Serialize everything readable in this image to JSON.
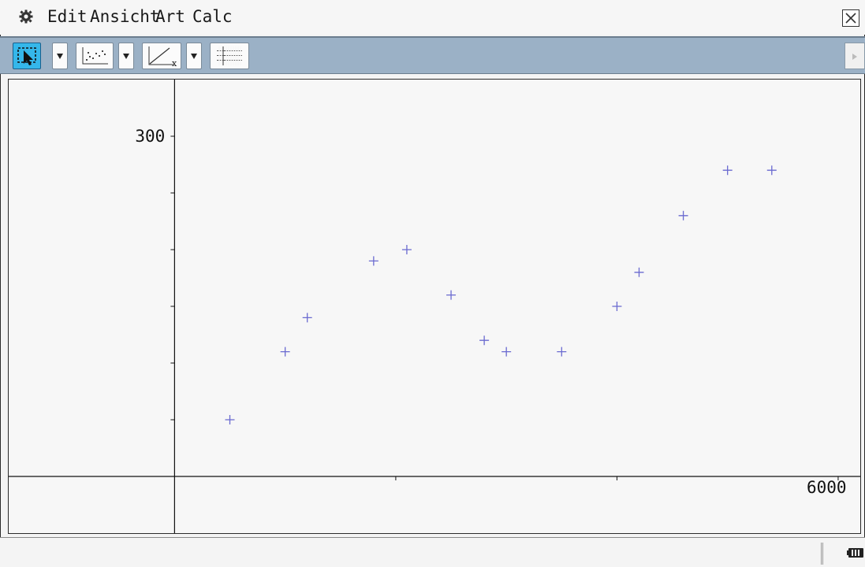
{
  "menu": {
    "items": [
      "Edit",
      "Ansicht",
      "Art",
      "Calc"
    ]
  },
  "toolbar": {
    "icons": [
      "select-pointer-icon",
      "scatter-plot-icon",
      "line-graph-icon",
      "grid-icon"
    ]
  },
  "graph": {
    "y_tick_label": "300",
    "x_tick_label": "6000"
  },
  "chart_data": {
    "type": "scatter",
    "marker": "+",
    "marker_color": "#6a6ad0",
    "xlim": [
      -1500,
      6200
    ],
    "ylim": [
      -50,
      350
    ],
    "x_ticks": [
      2000,
      4000,
      6000
    ],
    "y_ticks": [
      50,
      100,
      150,
      200,
      250,
      300
    ],
    "x_labels": {
      "6000": "6000"
    },
    "y_labels": {
      "300": "300"
    },
    "points": [
      {
        "x": 500,
        "y": 50
      },
      {
        "x": 1000,
        "y": 110
      },
      {
        "x": 1200,
        "y": 140
      },
      {
        "x": 1800,
        "y": 190
      },
      {
        "x": 2100,
        "y": 200
      },
      {
        "x": 2500,
        "y": 160
      },
      {
        "x": 2800,
        "y": 120
      },
      {
        "x": 3000,
        "y": 110
      },
      {
        "x": 3500,
        "y": 110
      },
      {
        "x": 4000,
        "y": 150
      },
      {
        "x": 4200,
        "y": 180
      },
      {
        "x": 4600,
        "y": 230
      },
      {
        "x": 5000,
        "y": 270
      },
      {
        "x": 5400,
        "y": 270
      }
    ]
  }
}
